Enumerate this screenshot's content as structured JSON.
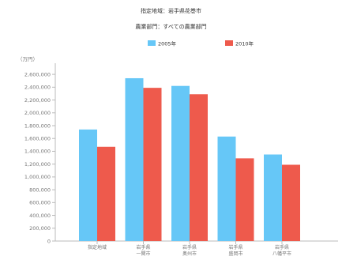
{
  "header": {
    "line1": "指定地域：岩手県花巻市",
    "line2": "農業部門：すべての農業部門"
  },
  "colors": {
    "s2005": "#66c7f7",
    "s2010": "#ee5a4c",
    "axis": "#bbbbbb"
  },
  "chart_data": {
    "type": "bar",
    "title": "指定地域：岩手県花巻市",
    "subtitle": "農業部門：すべての農業部門",
    "unit_label": "（万円）",
    "categories": [
      [
        "指定地域"
      ],
      [
        "岩手県",
        "一関市"
      ],
      [
        "岩手県",
        "奥州市"
      ],
      [
        "岩手県",
        "盛岡市"
      ],
      [
        "岩手県",
        "八幡平市"
      ]
    ],
    "series": [
      {
        "name": "2005年",
        "values": [
          1740000,
          2540000,
          2420000,
          1630000,
          1350000
        ]
      },
      {
        "name": "2010年",
        "values": [
          1470000,
          2390000,
          2290000,
          1290000,
          1190000
        ]
      }
    ],
    "ylim": [
      0,
      2700000
    ],
    "yticks": [
      0,
      200000,
      400000,
      600000,
      800000,
      1000000,
      1200000,
      1400000,
      1600000,
      1800000,
      2000000,
      2200000,
      2400000,
      2600000
    ],
    "ytick_labels": [
      "0",
      "200,000",
      "400,000",
      "600,000",
      "800,000",
      "1,000,000",
      "1,200,000",
      "1,400,000",
      "1,600,000",
      "1,800,000",
      "2,000,000",
      "2,200,000",
      "2,400,000",
      "2,600,000"
    ],
    "legend_position": "top",
    "grid": false
  }
}
